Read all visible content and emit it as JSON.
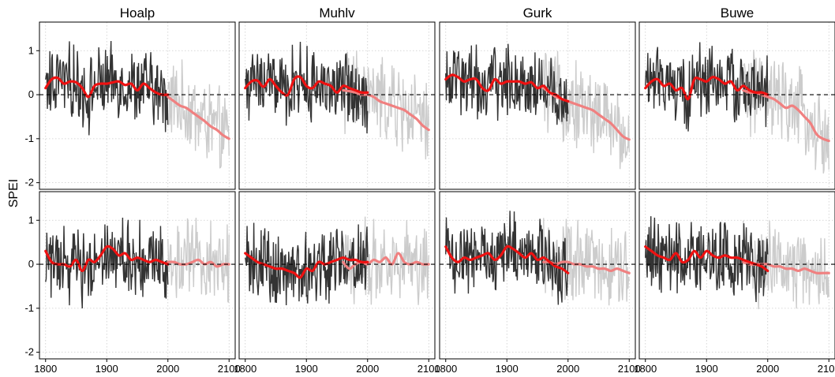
{
  "chart_data": {
    "type": "line",
    "ylabel": "SPEI",
    "xlabel": "",
    "xlim": [
      1790,
      2110
    ],
    "ylim": [
      -2.15,
      1.65
    ],
    "xticks": [
      1800,
      1900,
      2000,
      2100
    ],
    "yticks": [
      -2,
      -1,
      0,
      1
    ],
    "grid": true,
    "reference_line": 0,
    "colors": {
      "observed": "#333333",
      "projection": "#cccccc",
      "smooth_obs": "#ee1111",
      "smooth_proj": "#f08080",
      "zero_line": "#000000",
      "grid": "#cccccc"
    },
    "columns": [
      "Hoalp",
      "Muhlv",
      "Gurk",
      "Buwe"
    ],
    "panels": [
      {
        "row": 1,
        "column": "Hoalp",
        "observed_range": [
          1800,
          2000
        ],
        "projection_range": [
          2000,
          2100
        ],
        "smooth_observed": {
          "x": [
            1800,
            1810,
            1820,
            1830,
            1840,
            1850,
            1860,
            1870,
            1880,
            1890,
            1900,
            1910,
            1920,
            1930,
            1940,
            1950,
            1960,
            1970,
            1980,
            1990,
            2000
          ],
          "y": [
            0.15,
            0.35,
            0.38,
            0.25,
            0.3,
            0.28,
            0.15,
            -0.05,
            0.2,
            0.25,
            0.25,
            0.28,
            0.3,
            0.22,
            0.25,
            0.1,
            0.25,
            0.15,
            0.05,
            0.0,
            0.0
          ]
        },
        "smooth_projection": {
          "x": [
            2000,
            2010,
            2020,
            2030,
            2040,
            2050,
            2060,
            2070,
            2080,
            2090,
            2100
          ],
          "y": [
            -0.05,
            -0.15,
            -0.25,
            -0.3,
            -0.4,
            -0.5,
            -0.6,
            -0.72,
            -0.8,
            -0.92,
            -1.0
          ]
        }
      },
      {
        "row": 1,
        "column": "Muhlv",
        "observed_range": [
          1800,
          2000
        ],
        "projection_range": [
          1960,
          2100
        ],
        "smooth_observed": {
          "x": [
            1800,
            1810,
            1820,
            1830,
            1840,
            1850,
            1860,
            1870,
            1880,
            1890,
            1900,
            1910,
            1920,
            1930,
            1940,
            1950,
            1960,
            1970,
            1980,
            1990,
            2000
          ],
          "y": [
            0.15,
            0.3,
            0.32,
            0.18,
            0.35,
            0.2,
            0.05,
            0.0,
            0.35,
            0.4,
            0.2,
            0.15,
            0.3,
            0.25,
            0.2,
            0.05,
            0.2,
            0.15,
            0.1,
            0.05,
            0.05
          ]
        },
        "smooth_projection": {
          "x": [
            1960,
            1970,
            1980,
            1990,
            2000,
            2010,
            2020,
            2030,
            2040,
            2050,
            2060,
            2070,
            2080,
            2090,
            2100
          ],
          "y": [
            0.1,
            0.08,
            0.05,
            0.0,
            0.0,
            -0.05,
            -0.15,
            -0.2,
            -0.25,
            -0.3,
            -0.35,
            -0.45,
            -0.55,
            -0.7,
            -0.8
          ]
        }
      },
      {
        "row": 1,
        "column": "Gurk",
        "observed_range": [
          1800,
          2000
        ],
        "projection_range": [
          1960,
          2100
        ],
        "smooth_observed": {
          "x": [
            1800,
            1810,
            1820,
            1830,
            1840,
            1850,
            1860,
            1870,
            1880,
            1890,
            1900,
            1910,
            1920,
            1930,
            1940,
            1950,
            1960,
            1970,
            1980,
            1990,
            2000
          ],
          "y": [
            0.35,
            0.45,
            0.4,
            0.3,
            0.35,
            0.35,
            0.15,
            0.1,
            0.35,
            0.25,
            0.3,
            0.3,
            0.3,
            0.25,
            0.28,
            0.15,
            0.2,
            0.05,
            0.0,
            -0.1,
            -0.15
          ]
        },
        "smooth_projection": {
          "x": [
            1960,
            1970,
            1980,
            1990,
            2000,
            2010,
            2020,
            2030,
            2040,
            2050,
            2060,
            2070,
            2080,
            2090,
            2100
          ],
          "y": [
            0.15,
            0.05,
            -0.05,
            -0.1,
            -0.15,
            -0.2,
            -0.25,
            -0.3,
            -0.35,
            -0.45,
            -0.55,
            -0.65,
            -0.8,
            -0.95,
            -1.02
          ]
        }
      },
      {
        "row": 1,
        "column": "Buwe",
        "observed_range": [
          1800,
          2000
        ],
        "projection_range": [
          1960,
          2100
        ],
        "smooth_observed": {
          "x": [
            1800,
            1810,
            1820,
            1830,
            1840,
            1850,
            1860,
            1870,
            1880,
            1890,
            1900,
            1910,
            1920,
            1930,
            1940,
            1950,
            1960,
            1970,
            1980,
            1990,
            2000
          ],
          "y": [
            0.15,
            0.3,
            0.35,
            0.2,
            0.25,
            0.1,
            0.15,
            -0.1,
            0.35,
            0.35,
            0.3,
            0.4,
            0.35,
            0.25,
            0.3,
            0.1,
            0.2,
            0.1,
            0.05,
            0.05,
            0.0
          ]
        },
        "smooth_projection": {
          "x": [
            1960,
            1970,
            1980,
            1990,
            2000,
            2010,
            2020,
            2030,
            2040,
            2050,
            2060,
            2070,
            2080,
            2090,
            2100
          ],
          "y": [
            0.1,
            0.05,
            0.05,
            0.0,
            -0.05,
            -0.1,
            -0.2,
            -0.3,
            -0.25,
            -0.35,
            -0.5,
            -0.65,
            -0.9,
            -1.0,
            -1.05
          ]
        }
      },
      {
        "row": 2,
        "column": "Hoalp",
        "observed_range": [
          1800,
          2000
        ],
        "projection_range": [
          2000,
          2100
        ],
        "smooth_observed": {
          "x": [
            1800,
            1810,
            1820,
            1830,
            1840,
            1850,
            1860,
            1870,
            1880,
            1890,
            1900,
            1910,
            1920,
            1930,
            1940,
            1950,
            1960,
            1970,
            1980,
            1990,
            2000
          ],
          "y": [
            0.3,
            0.05,
            0.0,
            0.0,
            -0.05,
            0.1,
            -0.15,
            0.1,
            0.05,
            0.2,
            0.4,
            0.35,
            0.2,
            0.25,
            0.1,
            0.15,
            0.1,
            0.05,
            0.1,
            0.05,
            0.0
          ]
        },
        "smooth_projection": {
          "x": [
            2000,
            2010,
            2020,
            2030,
            2040,
            2050,
            2060,
            2070,
            2080,
            2090,
            2100
          ],
          "y": [
            0.05,
            0.05,
            0.0,
            0.0,
            0.05,
            0.1,
            0.0,
            0.05,
            -0.05,
            0.0,
            0.0
          ]
        }
      },
      {
        "row": 2,
        "column": "Muhlv",
        "observed_range": [
          1800,
          2000
        ],
        "projection_range": [
          1960,
          2100
        ],
        "smooth_observed": {
          "x": [
            1800,
            1810,
            1820,
            1830,
            1840,
            1850,
            1860,
            1870,
            1880,
            1890,
            1900,
            1910,
            1920,
            1930,
            1940,
            1950,
            1960,
            1970,
            1980,
            1990,
            2000
          ],
          "y": [
            0.25,
            0.15,
            0.05,
            0.0,
            -0.05,
            -0.1,
            -0.1,
            -0.15,
            -0.2,
            -0.3,
            -0.1,
            -0.15,
            0.05,
            0.0,
            0.05,
            0.1,
            0.15,
            0.1,
            0.1,
            0.05,
            0.05
          ]
        },
        "smooth_projection": {
          "x": [
            1960,
            1970,
            1980,
            1990,
            2000,
            2010,
            2020,
            2030,
            2040,
            2050,
            2060,
            2070,
            2080,
            2090,
            2100
          ],
          "y": [
            0.05,
            -0.1,
            0.0,
            0.05,
            0.0,
            0.1,
            0.05,
            0.15,
            0.0,
            0.25,
            0.05,
            0.0,
            0.05,
            0.0,
            0.0
          ]
        }
      },
      {
        "row": 2,
        "column": "Gurk",
        "observed_range": [
          1800,
          2000
        ],
        "projection_range": [
          1960,
          2100
        ],
        "smooth_observed": {
          "x": [
            1800,
            1810,
            1820,
            1830,
            1840,
            1850,
            1860,
            1870,
            1880,
            1890,
            1900,
            1910,
            1920,
            1930,
            1940,
            1950,
            1960,
            1970,
            1980,
            1990,
            2000
          ],
          "y": [
            0.4,
            0.15,
            0.05,
            0.15,
            0.1,
            0.15,
            0.2,
            0.25,
            0.1,
            0.2,
            0.4,
            0.35,
            0.25,
            0.15,
            0.25,
            0.1,
            0.15,
            0.05,
            -0.05,
            -0.1,
            -0.2
          ]
        },
        "smooth_projection": {
          "x": [
            1960,
            1970,
            1980,
            1990,
            2000,
            2010,
            2020,
            2030,
            2040,
            2050,
            2060,
            2070,
            2080,
            2090,
            2100
          ],
          "y": [
            0.05,
            0.05,
            0.0,
            0.05,
            0.05,
            0.0,
            0.0,
            -0.05,
            -0.05,
            -0.1,
            -0.1,
            -0.15,
            -0.1,
            -0.15,
            -0.2
          ]
        }
      },
      {
        "row": 2,
        "column": "Buwe",
        "observed_range": [
          1800,
          2000
        ],
        "projection_range": [
          1960,
          2100
        ],
        "smooth_observed": {
          "x": [
            1800,
            1810,
            1820,
            1830,
            1840,
            1850,
            1860,
            1870,
            1880,
            1890,
            1900,
            1910,
            1920,
            1930,
            1940,
            1950,
            1960,
            1970,
            1980,
            1990,
            2000
          ],
          "y": [
            0.4,
            0.3,
            0.2,
            0.15,
            0.1,
            0.25,
            0.05,
            0.1,
            0.3,
            0.15,
            0.3,
            0.2,
            0.15,
            0.2,
            0.15,
            0.15,
            0.1,
            0.05,
            0.0,
            -0.05,
            -0.15
          ]
        },
        "smooth_projection": {
          "x": [
            1960,
            1970,
            1980,
            1990,
            2000,
            2010,
            2020,
            2030,
            2040,
            2050,
            2060,
            2070,
            2080,
            2090,
            2100
          ],
          "y": [
            0.05,
            0.0,
            0.0,
            0.0,
            0.0,
            -0.05,
            -0.05,
            -0.1,
            -0.1,
            -0.15,
            -0.1,
            -0.15,
            -0.2,
            -0.2,
            -0.2
          ]
        }
      }
    ]
  }
}
